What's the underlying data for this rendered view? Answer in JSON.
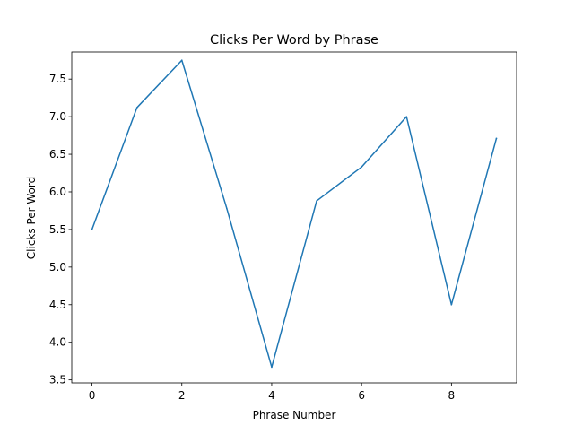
{
  "chart_data": {
    "type": "line",
    "title": "Clicks Per Word by Phrase",
    "xlabel": "Phrase Number",
    "ylabel": "Clicks Per Word",
    "xlim": [
      -0.45,
      9.45
    ],
    "ylim": [
      3.46,
      7.86
    ],
    "x_ticks": [
      0,
      2,
      4,
      6,
      8
    ],
    "x_tick_labels": [
      "0",
      "2",
      "4",
      "6",
      "8"
    ],
    "y_ticks": [
      3.5,
      4.0,
      4.5,
      5.0,
      5.5,
      6.0,
      6.5,
      7.0,
      7.5
    ],
    "y_tick_labels": [
      "3.5",
      "4.0",
      "4.5",
      "5.0",
      "5.5",
      "6.0",
      "6.5",
      "7.0",
      "7.5"
    ],
    "grid": false,
    "series": [
      {
        "color": "#1f77b4",
        "x": [
          0,
          1,
          2,
          3,
          4,
          5,
          6,
          7,
          8,
          9
        ],
        "y": [
          5.5,
          7.12,
          7.75,
          5.78,
          3.67,
          5.88,
          6.33,
          7.0,
          4.5,
          6.71
        ]
      }
    ]
  }
}
